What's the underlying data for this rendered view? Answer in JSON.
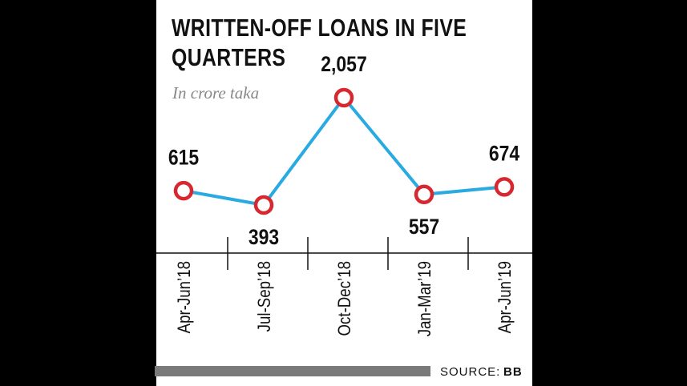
{
  "chart_data": {
    "type": "line",
    "title": "WRITTEN-OFF LOANS IN FIVE QUARTERS",
    "subtitle": "In crore taka",
    "categories": [
      "Apr-Jun’18",
      "Jul-Sep’18",
      "Oct-Dec’18",
      "Jan-Mar’19",
      "Apr-Jun’19"
    ],
    "values": [
      615,
      393,
      2057,
      557,
      674
    ],
    "value_labels": [
      "615",
      "393",
      "2,057",
      "557",
      "674"
    ],
    "color": "#29abe2",
    "marker_color": "#d7282f",
    "source_label": "SOURCE:",
    "source": "BB"
  }
}
